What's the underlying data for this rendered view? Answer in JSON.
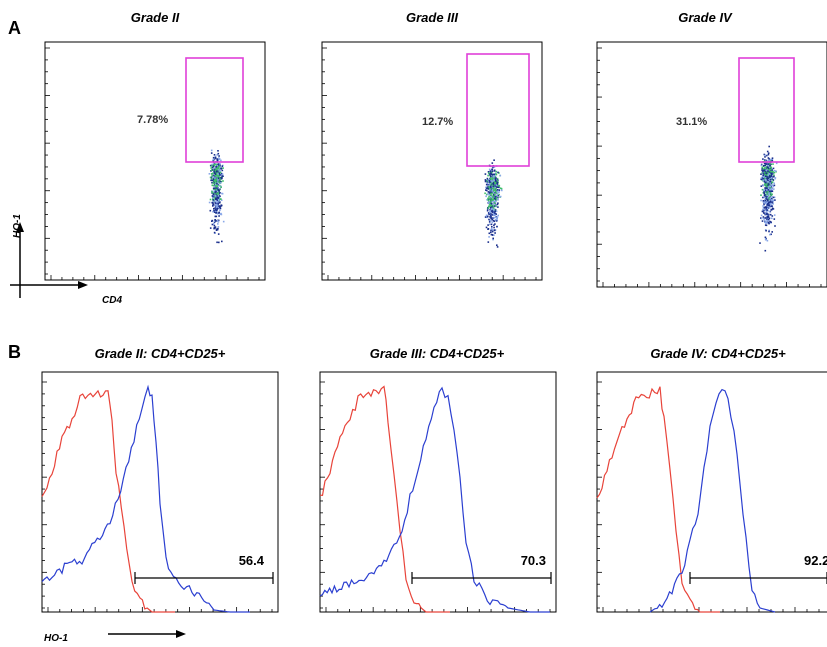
{
  "figure": {
    "panel_a_label": "A",
    "panel_b_label": "B",
    "axis_x_label": "CD4",
    "axis_y_label": "HO-1",
    "hist_axis_label": "HO-1"
  },
  "colors": {
    "gate": "#e040d8",
    "red_curve": "#e8443a",
    "blue_curve": "#2b3fd0",
    "dots_dark": "#1a2f8c",
    "dots_light": "#8aa8e8",
    "dots_hot": "#3fbf6a"
  },
  "chart_data": [
    {
      "type": "scatter",
      "title": "Grade II",
      "gate_percent_label": "7.78%",
      "gate_percent": 7.78,
      "xlabel": "CD4",
      "ylabel": "HO-1"
    },
    {
      "type": "scatter",
      "title": "Grade III",
      "gate_percent_label": "12.7%",
      "gate_percent": 12.7,
      "xlabel": "CD4",
      "ylabel": "HO-1"
    },
    {
      "type": "scatter",
      "title": "Grade IV",
      "gate_percent_label": "31.1%",
      "gate_percent": 31.1,
      "xlabel": "CD4",
      "ylabel": "HO-1"
    },
    {
      "type": "line",
      "title": "Grade II: CD4+CD25+",
      "gate_value_label": "56.4",
      "gate_value": 56.4,
      "xlabel": "HO-1",
      "series_count": 2
    },
    {
      "type": "line",
      "title": "Grade III: CD4+CD25+",
      "gate_value_label": "70.3",
      "gate_value": 70.3,
      "xlabel": "HO-1",
      "series_count": 2
    },
    {
      "type": "line",
      "title": "Grade IV: CD4+CD25+",
      "gate_value_label": "92.2",
      "gate_value": 92.2,
      "xlabel": "HO-1",
      "series_count": 2
    }
  ]
}
